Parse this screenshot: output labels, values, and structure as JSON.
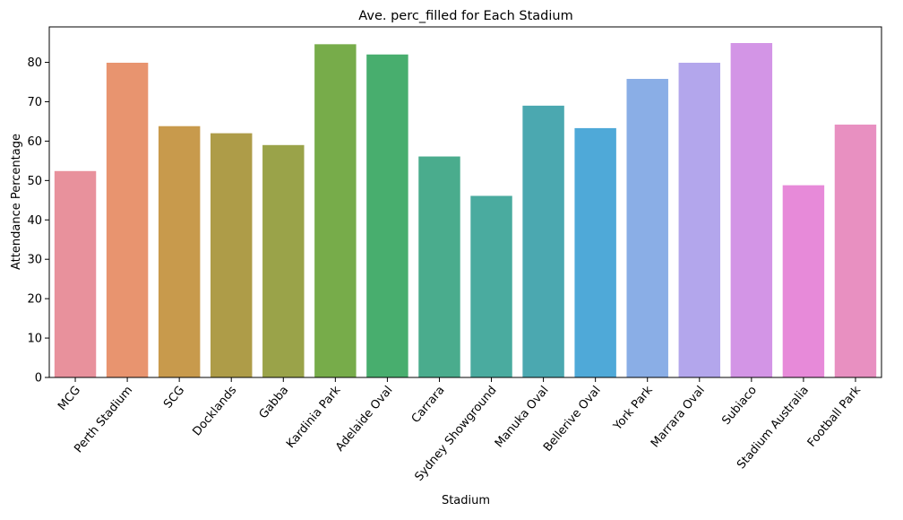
{
  "chart_data": {
    "type": "bar",
    "title": "Ave. perc_filled for Each Stadium",
    "xlabel": "Stadium",
    "ylabel": "Attendance Percentage",
    "categories": [
      "MCG",
      "Perth Stadium",
      "SCG",
      "Docklands",
      "Gabba",
      "Kardinia Park",
      "Adelaide Oval",
      "Carrara",
      "Sydney Showground",
      "Manuka Oval",
      "Bellerive Oval",
      "York Park",
      "Marrara Oval",
      "Subiaco",
      "Stadium Australia",
      "Football Park"
    ],
    "values": [
      52.4,
      79.9,
      63.8,
      62.0,
      59.0,
      84.6,
      82.0,
      56.1,
      46.1,
      69.0,
      63.3,
      75.8,
      79.9,
      84.9,
      48.8,
      64.2
    ],
    "colors": [
      "#e8919c",
      "#e8946f",
      "#c89a4c",
      "#ae9c48",
      "#9aa349",
      "#77ac4a",
      "#48ae6e",
      "#4aac8d",
      "#4aab9f",
      "#4ba8b0",
      "#4fa9d8",
      "#8aaee6",
      "#b3a6ec",
      "#d395e6",
      "#e78ad9",
      "#e890c1"
    ],
    "yticks": [
      0,
      10,
      20,
      30,
      40,
      50,
      60,
      70,
      80
    ],
    "ylim": [
      0,
      89
    ],
    "grid": false,
    "legend": false
  }
}
